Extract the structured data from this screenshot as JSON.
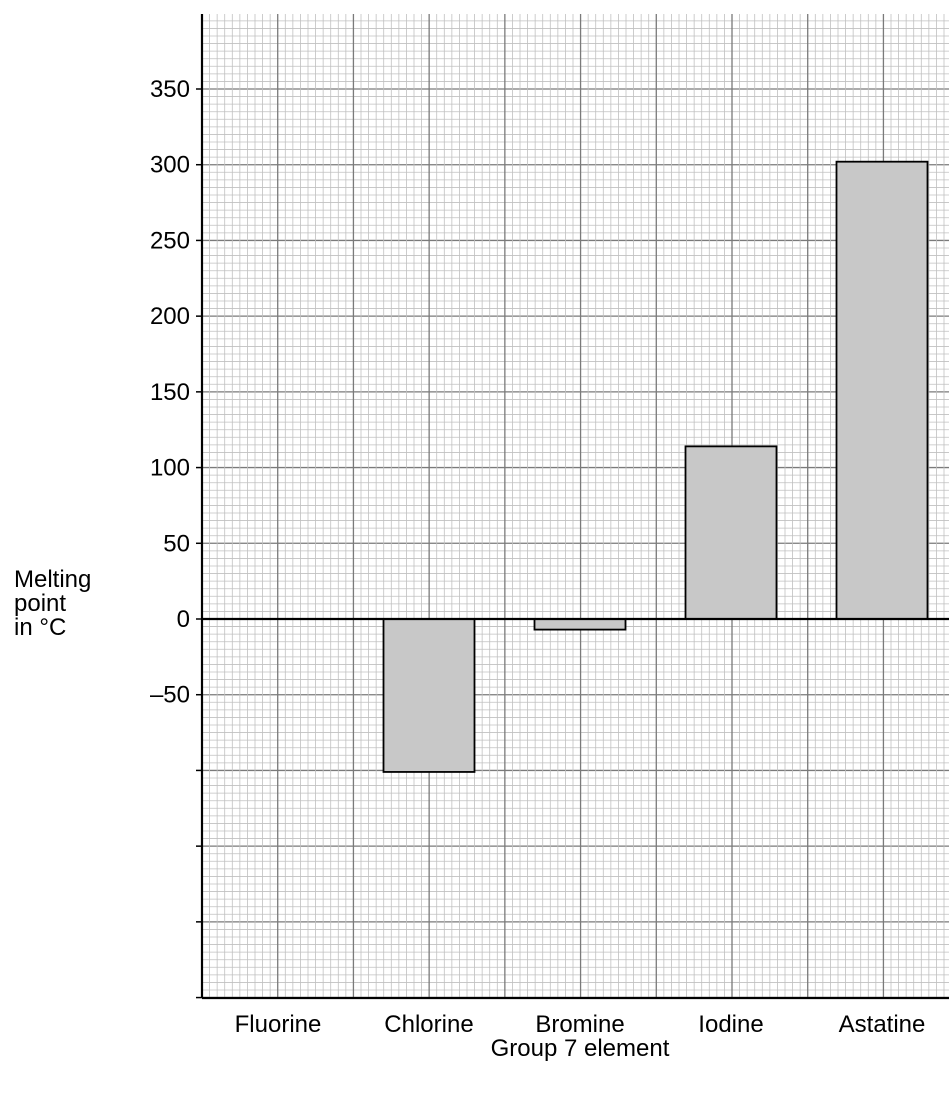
{
  "chart_data": {
    "type": "bar",
    "categories": [
      "Fluorine",
      "Chlorine",
      "Bromine",
      "Iodine",
      "Astatine"
    ],
    "values": [
      null,
      -101,
      -7,
      114,
      302
    ],
    "xlabel": "Group 7 element",
    "ylabel_lines": [
      "Melting",
      "point",
      "in °C"
    ],
    "ylim": [
      -250,
      400
    ],
    "yticks": [
      -250,
      -200,
      -150,
      -100,
      -50,
      0,
      50,
      100,
      150,
      200,
      250,
      300,
      350
    ],
    "ytick_labels": [
      "",
      "",
      "",
      "",
      "–50",
      "0",
      "50",
      "100",
      "150",
      "200",
      "250",
      "300",
      "350"
    ],
    "grid": true,
    "bar_color": "#c8c8c8"
  }
}
